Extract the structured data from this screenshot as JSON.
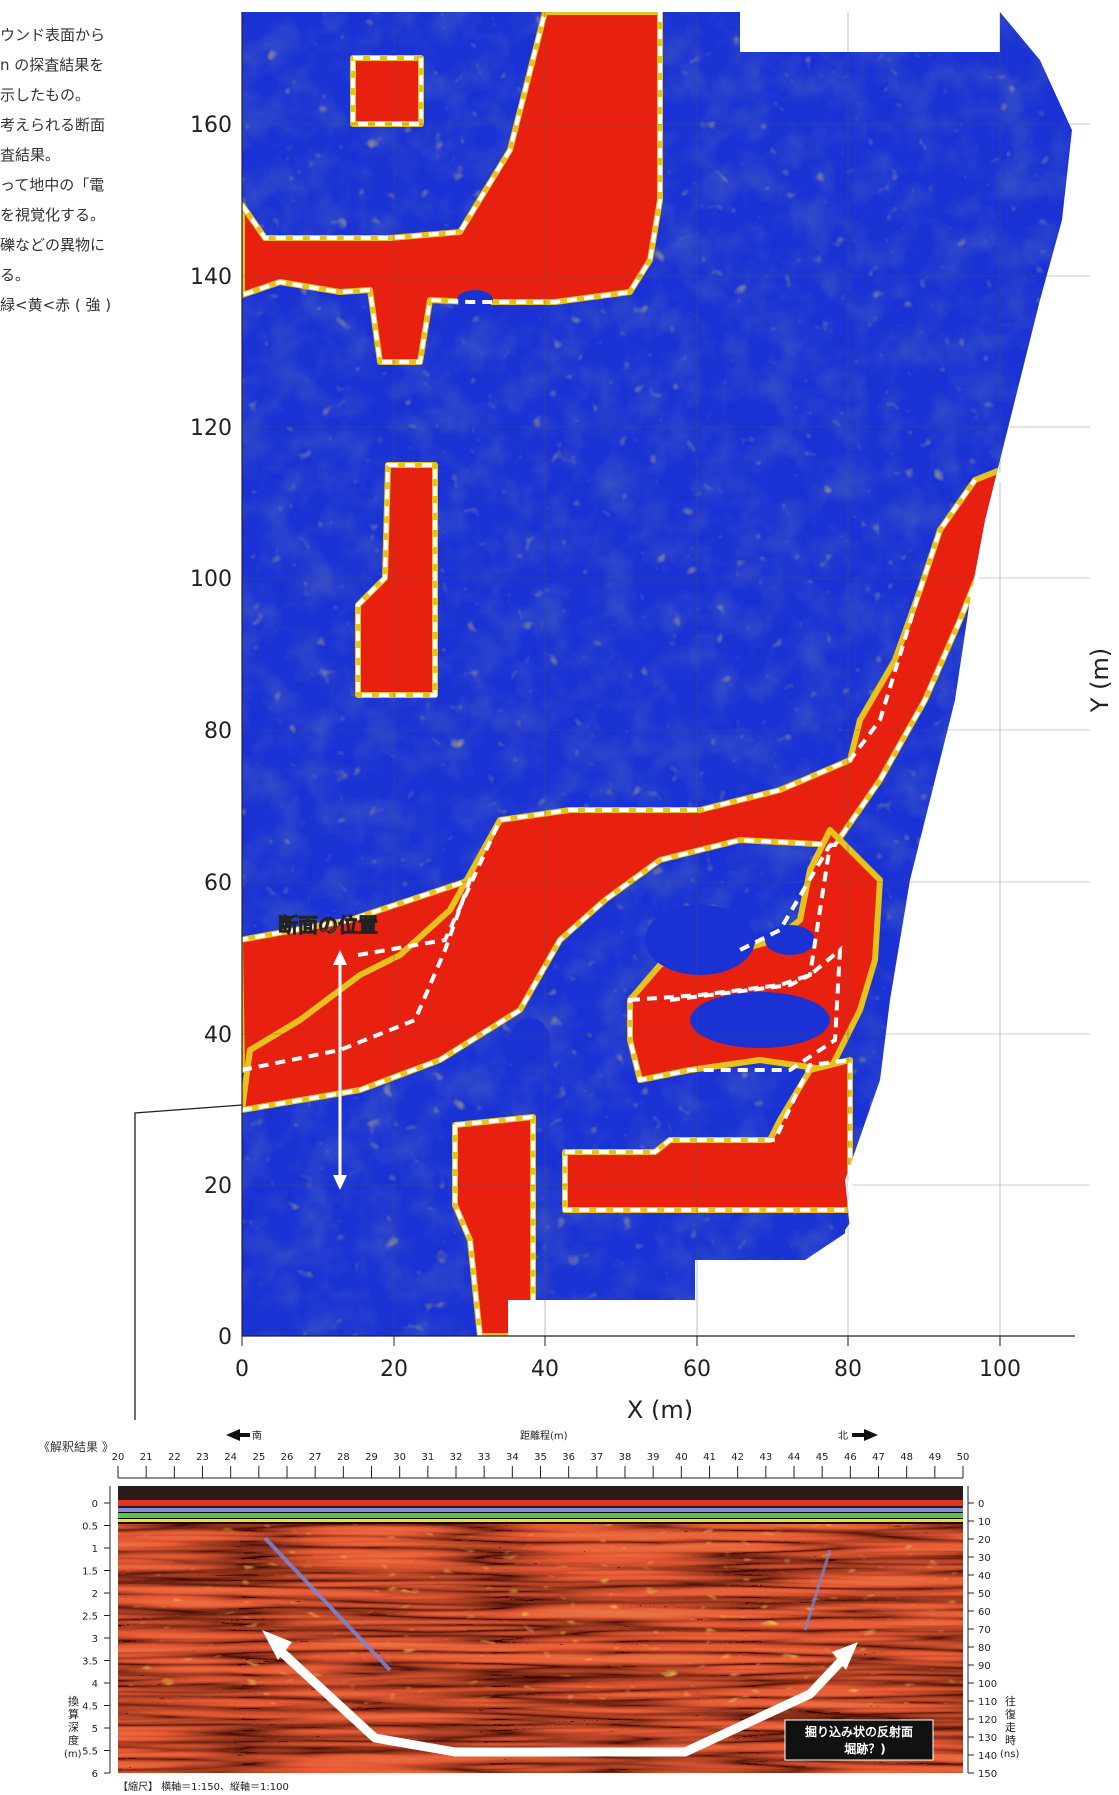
{
  "side_note": {
    "lines": [
      "ウンド表面から",
      "n の探査結果を",
      "示したもの。",
      "考えられる断面",
      "査結果。",
      "",
      "って地中の「電",
      "を視覚化する。",
      "礫などの異物に",
      "る。",
      "緑<黄<赤 ( 強 )"
    ]
  },
  "map_chart": {
    "type": "heatmap",
    "xlabel": "X (m)",
    "ylabel": "Y (m)",
    "xlim": [
      0,
      110
    ],
    "ylim": [
      0,
      175
    ],
    "xticks": [
      "0",
      "20",
      "40",
      "60",
      "80",
      "100"
    ],
    "yticks": [
      "0",
      "20",
      "40",
      "60",
      "80",
      "100",
      "120",
      "140",
      "160"
    ],
    "grid": true,
    "color_scale": [
      "#0a1a8c",
      "#1a36d6",
      "#2d6b1a",
      "#e8c21a",
      "#e8200f"
    ],
    "annotation": "断面の位置"
  },
  "profile": {
    "section_label": "《解釈結果 》",
    "dir_south": "南",
    "dir_north": "北",
    "distance_label": "距離程(m)",
    "distance_ticks": [
      "20",
      "21",
      "22",
      "23",
      "24",
      "25",
      "26",
      "27",
      "28",
      "29",
      "30",
      "31",
      "32",
      "33",
      "34",
      "35",
      "36",
      "37",
      "38",
      "39",
      "40",
      "41",
      "42",
      "43",
      "44",
      "45",
      "46",
      "47",
      "48",
      "49",
      "50"
    ],
    "depth_label": "換算深度(m)",
    "depth_ticks": [
      "0",
      "0.5",
      "1",
      "1.5",
      "2",
      "2.5",
      "3",
      "3.5",
      "4",
      "4.5",
      "5",
      "5.5",
      "6"
    ],
    "time_label": "往復走時(ns)",
    "time_ticks": [
      "0",
      "10",
      "20",
      "30",
      "40",
      "50",
      "60",
      "70",
      "80",
      "90",
      "100",
      "110",
      "120",
      "130",
      "140",
      "150"
    ],
    "callout_line1": "掘り込み状の反射面",
    "callout_line2": "堀跡？)",
    "scale_note": "【縮尺】 横軸＝1:150、縦軸＝1:100"
  },
  "chart_data": [
    {
      "type": "heatmap",
      "title": "",
      "xlabel": "X (m)",
      "ylabel": "Y (m)",
      "xlim": [
        0,
        110
      ],
      "ylim": [
        0,
        175
      ],
      "xticks": [
        0,
        20,
        40,
        60,
        80,
        100
      ],
      "yticks": [
        0,
        20,
        40,
        60,
        80,
        100,
        120,
        140,
        160
      ],
      "grid": true,
      "interpreted_zones": [
        {
          "label": "zone-top-square",
          "x": [
            15,
            24
          ],
          "y": [
            160,
            169
          ]
        },
        {
          "label": "zone-upper-band",
          "x": [
            0,
            55
          ],
          "y": [
            137,
            175
          ]
        },
        {
          "label": "zone-column",
          "x": [
            15,
            25
          ],
          "y": [
            85,
            116
          ]
        },
        {
          "label": "zone-diagonal",
          "x": [
            0,
            100
          ],
          "y": [
            20,
            115
          ]
        },
        {
          "label": "zone-south-bar",
          "x": [
            28,
            40
          ],
          "y": [
            0,
            29
          ]
        },
        {
          "label": "zone-south-rect",
          "x": [
            42,
            80
          ],
          "y": [
            17,
            27
          ]
        }
      ],
      "annotation": "断面の位置"
    },
    {
      "type": "heatmap",
      "title": "",
      "xlabel": "距離程(m)",
      "ylabel": "換算深度(m)",
      "xlim": [
        20,
        50
      ],
      "ylim": [
        0,
        6
      ],
      "secondary_ylabel": "往復走時(ns)",
      "secondary_ylim": [
        0,
        150
      ],
      "annotation": "掘り込み状の反射面 堀跡？)"
    }
  ]
}
